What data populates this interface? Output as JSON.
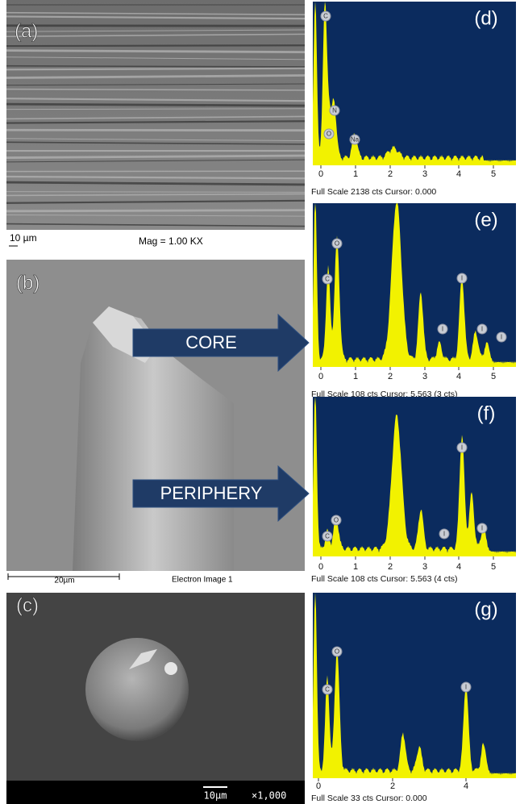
{
  "panels": [
    {
      "label": "(a)",
      "scale": "10 µm",
      "caption": "Mag = 1.00 KX"
    },
    {
      "label": "(b)",
      "scale": "20µm",
      "caption": "Electron Image 1",
      "arrows": [
        "CORE",
        "PERIPHERY"
      ]
    },
    {
      "label": "(c)",
      "scale": "10µm",
      "caption": "×1,000"
    }
  ],
  "spectra": [
    {
      "label": "(d)",
      "ticks": [
        "0",
        "1",
        "2",
        "3",
        "4",
        "5"
      ],
      "peaks": [
        "C",
        "O",
        "N",
        "Na"
      ],
      "footer": "Full Scale 2138 cts Cursor: 0.000"
    },
    {
      "label": "(e)",
      "ticks": [
        "0",
        "1",
        "2",
        "3",
        "4",
        "5"
      ],
      "peaks": [
        "C",
        "O",
        "I",
        "I",
        "I",
        "I"
      ],
      "footer": "Full Scale 108 cts Cursor: 5.563  (3 cts)"
    },
    {
      "label": "(f)",
      "ticks": [
        "0",
        "1",
        "2",
        "3",
        "4",
        "5"
      ],
      "peaks": [
        "C",
        "O",
        "I",
        "I",
        "I"
      ],
      "footer": "Full Scale 108 cts Cursor: 5.563  (4 cts)"
    },
    {
      "label": "(g)",
      "ticks": [
        "0",
        "2",
        "4"
      ],
      "peaks": [
        "C",
        "O",
        "I"
      ],
      "footer": "Full Scale 33 cts Cursor: 0.000"
    }
  ]
}
